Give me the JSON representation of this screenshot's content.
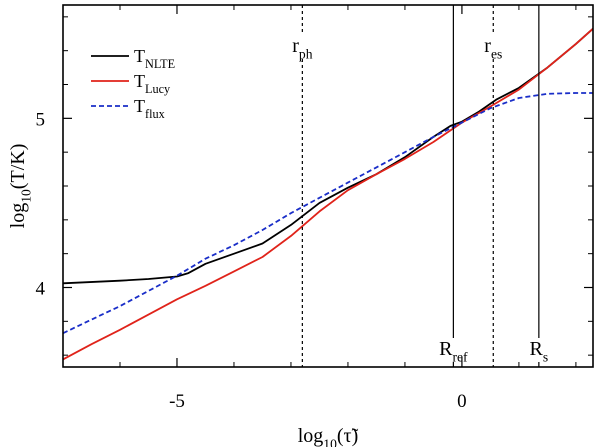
{
  "chart_data": {
    "type": "line",
    "xlabel": {
      "main": "log",
      "sub": "10",
      "arg": "(τ̃)"
    },
    "ylabel": {
      "main": "log",
      "sub": "10",
      "arg": "(T/K)"
    },
    "xlim": [
      -7.0,
      2.3
    ],
    "ylim": [
      3.53,
      5.67
    ],
    "xticks_major": [
      -5,
      0
    ],
    "xticks_minor": [
      -6,
      -4,
      -3,
      -2,
      -1,
      1,
      2
    ],
    "yticks_major": [
      4,
      5
    ],
    "yticks_minor": [
      3.6,
      3.8,
      4.2,
      4.4,
      4.6,
      4.8,
      5.2,
      5.4,
      5.6
    ],
    "grid": false,
    "legend_placement": "top-left",
    "series": [
      {
        "name": {
          "main": "T",
          "sub": "NLTE"
        },
        "color": "#000000",
        "dash": "solid",
        "x": [
          -7.0,
          -6.0,
          -5.5,
          -5.0,
          -4.8,
          -4.5,
          -4.0,
          -3.5,
          -3.0,
          -2.5,
          -2.0,
          -1.5,
          -1.0,
          -0.5,
          -0.2,
          0.0,
          0.3,
          0.6,
          1.0,
          1.5,
          2.0,
          2.3
        ],
        "y": [
          4.025,
          4.04,
          4.05,
          4.065,
          4.085,
          4.14,
          4.2,
          4.26,
          4.37,
          4.5,
          4.59,
          4.67,
          4.77,
          4.89,
          4.955,
          4.98,
          5.04,
          5.11,
          5.18,
          5.3,
          5.44,
          5.53
        ]
      },
      {
        "name": {
          "main": "T",
          "sub": "Lucy"
        },
        "color": "#e0231a",
        "dash": "solid",
        "x": [
          -7.0,
          -6.5,
          -6.0,
          -5.5,
          -5.0,
          -4.5,
          -4.0,
          -3.5,
          -3.0,
          -2.5,
          -2.0,
          -1.5,
          -1.0,
          -0.5,
          0.0,
          0.5,
          1.0,
          1.5,
          2.0,
          2.3
        ],
        "y": [
          3.575,
          3.665,
          3.75,
          3.84,
          3.93,
          4.01,
          4.095,
          4.18,
          4.305,
          4.45,
          4.575,
          4.67,
          4.76,
          4.86,
          4.975,
          5.07,
          5.17,
          5.3,
          5.44,
          5.53
        ]
      },
      {
        "name": {
          "main": "T",
          "sub": "flux"
        },
        "color": "#1a2ec8",
        "dash": "dashed",
        "x": [
          -7.0,
          -6.5,
          -6.0,
          -5.5,
          -5.0,
          -4.5,
          -4.0,
          -3.5,
          -3.0,
          -2.5,
          -2.0,
          -1.5,
          -1.0,
          -0.5,
          0.0,
          0.5,
          1.0,
          1.5,
          2.0,
          2.3
        ],
        "y": [
          3.73,
          3.81,
          3.89,
          3.98,
          4.07,
          4.17,
          4.25,
          4.34,
          4.44,
          4.53,
          4.62,
          4.71,
          4.8,
          4.89,
          4.975,
          5.06,
          5.12,
          5.145,
          5.15,
          5.15
        ]
      }
    ],
    "vlines": [
      {
        "x": -2.8,
        "style": "dashed",
        "label": {
          "main": "r",
          "sub": "ph"
        },
        "label_position": "top"
      },
      {
        "x": 0.55,
        "style": "dashed",
        "label": {
          "main": "r",
          "sub": "es"
        },
        "label_position": "top"
      },
      {
        "x": -0.15,
        "style": "solid",
        "label": {
          "main": "R",
          "sub": "ref"
        },
        "label_position": "bottom"
      },
      {
        "x": 1.35,
        "style": "solid",
        "label": {
          "main": "R",
          "sub": "s"
        },
        "label_position": "bottom"
      }
    ]
  }
}
